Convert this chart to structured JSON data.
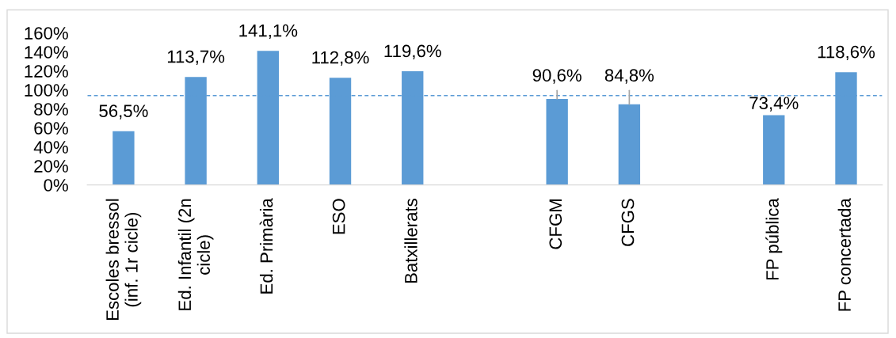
{
  "chart_data": {
    "type": "bar",
    "categories": [
      "Escoles bressol\n(inf. 1r cicle)",
      "Ed. Infantil (2n\ncicle)",
      "Ed. Primària",
      "ESO",
      "Batxillerats",
      null,
      "CFGM",
      "CFGS",
      null,
      "FP pública",
      "FP concertada"
    ],
    "values": [
      56.5,
      113.7,
      141.1,
      112.8,
      119.6,
      null,
      90.6,
      84.8,
      null,
      73.4,
      118.6
    ],
    "value_labels": [
      "56,5%",
      "113,7%",
      "141,1%",
      "112,8%",
      "119,6%",
      null,
      "90,6%",
      "84,8%",
      null,
      "73,4%",
      "118,6%"
    ],
    "color": "#5b9bd5",
    "ylim": [
      0,
      160
    ],
    "yticks": [
      {
        "value": 0,
        "label": "0%"
      },
      {
        "value": 20,
        "label": "20%"
      },
      {
        "value": 40,
        "label": "40%"
      },
      {
        "value": 60,
        "label": "60%"
      },
      {
        "value": 80,
        "label": "80%"
      },
      {
        "value": 100,
        "label": "100%"
      },
      {
        "value": 120,
        "label": "120%"
      },
      {
        "value": 140,
        "label": "140%"
      },
      {
        "value": 160,
        "label": "160%"
      }
    ],
    "ref_lines": [
      {
        "axis": "y",
        "value": 94,
        "color": "#5b9bd5",
        "line_style": "dashed"
      }
    ],
    "grid": false
  }
}
